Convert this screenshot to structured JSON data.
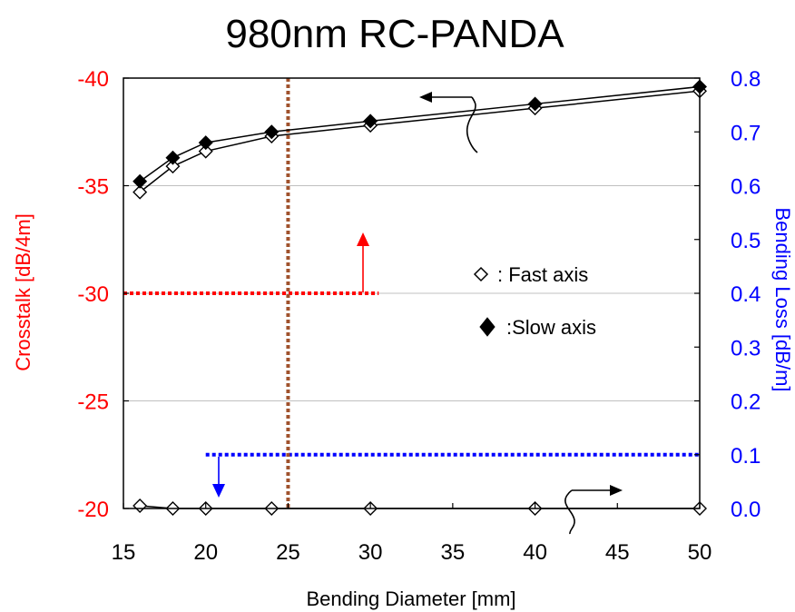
{
  "chart_data": {
    "type": "scatter",
    "title": "980nm RC-PANDA",
    "xlabel": "Bending Diameter [mm]",
    "ylabel_left": "Crosstalk [dB/4m]",
    "ylabel_right": "Bending Loss [dB/m]",
    "xlim": [
      15,
      50
    ],
    "ylim_left": [
      -20,
      -40
    ],
    "ylim_right": [
      0.0,
      0.8
    ],
    "x_ticks": [
      "15",
      "20",
      "25",
      "30",
      "35",
      "40",
      "45",
      "50"
    ],
    "y_left_ticks": [
      "-20",
      "-25",
      "-30",
      "-35",
      "-40"
    ],
    "y_right_ticks": [
      "0.0",
      "0.1",
      "0.2",
      "0.3",
      "0.4",
      "0.5",
      "0.6",
      "0.7",
      "0.8"
    ],
    "grid": "horizontal",
    "colors": {
      "left_axis": "#ff0000",
      "right_axis": "#0000ff",
      "crosstalk_threshold": "#ff0000",
      "loss_threshold": "#0000ff",
      "diameter_marker": "#a0522d",
      "series": "#000000"
    },
    "legend": {
      "placement": "center-right",
      "fast_label": ": Fast axis",
      "slow_label": ":Slow axis"
    },
    "series": [
      {
        "name": "Fast axis",
        "axis": "left",
        "marker": "open-diamond",
        "x": [
          16,
          18,
          20,
          24,
          30,
          40,
          50
        ],
        "values": [
          -34.7,
          -35.9,
          -36.6,
          -37.3,
          -37.8,
          -38.6,
          -39.4
        ]
      },
      {
        "name": "Slow axis",
        "axis": "left",
        "marker": "filled-diamond",
        "x": [
          16,
          18,
          20,
          24,
          30,
          40,
          50
        ],
        "values": [
          -35.2,
          -36.3,
          -37.0,
          -37.5,
          -38.0,
          -38.8,
          -39.6
        ]
      },
      {
        "name": "Fast axis",
        "axis": "right",
        "marker": "open-diamond",
        "x": [
          16,
          18,
          20,
          24,
          30,
          40,
          50
        ],
        "values": [
          0.005,
          0.0,
          0.0,
          0.0,
          0.0,
          0.0,
          0.0
        ]
      }
    ],
    "reference_lines": [
      {
        "orientation": "horizontal",
        "axis": "left",
        "value": -30,
        "x_range": [
          15,
          30.5
        ],
        "color_key": "crosstalk_threshold"
      },
      {
        "orientation": "horizontal",
        "axis": "right",
        "value": 0.1,
        "x_range": [
          20,
          50
        ],
        "color_key": "loss_threshold"
      },
      {
        "orientation": "vertical",
        "value": 25,
        "color_key": "diameter_marker"
      }
    ]
  }
}
